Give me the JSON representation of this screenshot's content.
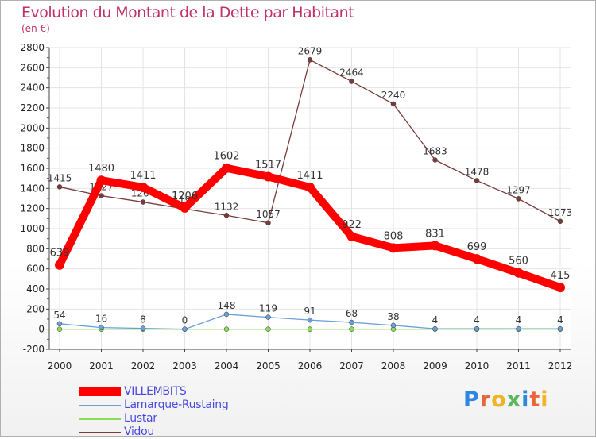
{
  "header": {
    "title": "Evolution du Montant de la Dette par Habitant",
    "subtitle": "(en €)"
  },
  "colors": {
    "title": "#c0306a",
    "axis": "#444444",
    "grid": "#e4e4e4",
    "legend_text": "#4a4ae0"
  },
  "chart_data": {
    "type": "line",
    "categories": [
      "2000",
      "2001",
      "2002",
      "2003",
      "2004",
      "2005",
      "2006",
      "2007",
      "2008",
      "2009",
      "2010",
      "2011",
      "2012"
    ],
    "ylim": [
      -200,
      2800
    ],
    "yticks": [
      -200,
      0,
      200,
      400,
      600,
      800,
      1000,
      1200,
      1400,
      1600,
      1800,
      2000,
      2200,
      2400,
      2600,
      2800
    ],
    "grid": true,
    "legend": "bottom-left",
    "series": [
      {
        "name": "VILLEMBITS",
        "color": "#ff0000",
        "values": [
          639,
          1480,
          1411,
          1206,
          1602,
          1517,
          1411,
          922,
          808,
          831,
          699,
          560,
          415
        ]
      },
      {
        "name": "Lamarque-Rustaing",
        "color": "#6a9fd8",
        "values": [
          54,
          16,
          8,
          0,
          148,
          119,
          91,
          68,
          38,
          4,
          4,
          4,
          4
        ]
      },
      {
        "name": "Lustar",
        "color": "#88dd55",
        "values": [
          0,
          0,
          0,
          0,
          0,
          0,
          0,
          0,
          0,
          0,
          0,
          0,
          0
        ]
      },
      {
        "name": "Vidou",
        "color": "#7a3b3b",
        "values": [
          1415,
          1327,
          1264,
          1196,
          1132,
          1057,
          2679,
          2464,
          2240,
          1683,
          1478,
          1297,
          1073
        ]
      }
    ]
  },
  "brand": {
    "logo_letters": [
      "P",
      "r",
      "o",
      "x",
      "i",
      "t",
      "i"
    ],
    "logo_colors": [
      "#2e86de",
      "#e8663c",
      "#f0b429",
      "#5cb85c",
      "#2e86de",
      "#e8663c",
      "#f0b429"
    ]
  }
}
